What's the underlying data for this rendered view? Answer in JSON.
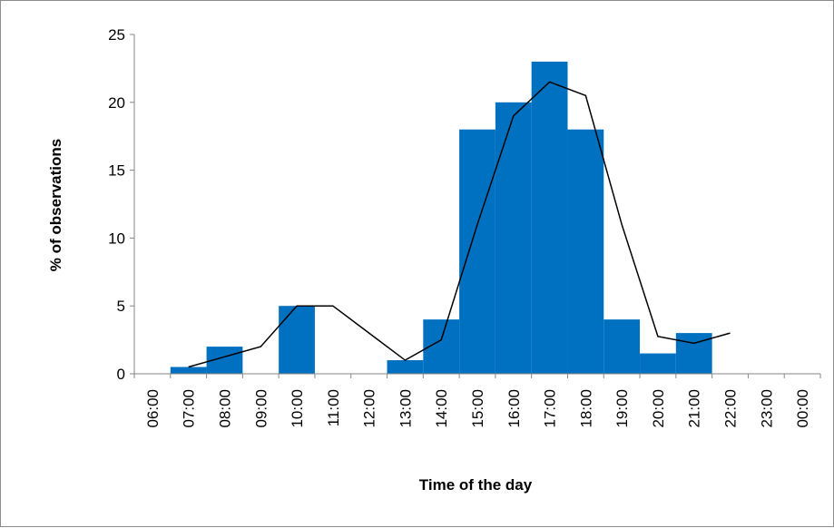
{
  "chart_data": {
    "type": "bar",
    "title": "",
    "xlabel": "Time of the day",
    "ylabel": "% of observations",
    "ylim": [
      0,
      25
    ],
    "yticks": [
      0,
      5,
      10,
      15,
      20,
      25
    ],
    "grid": false,
    "legend": "none",
    "categories": [
      "06:00",
      "07:00",
      "08:00",
      "09:00",
      "10:00",
      "11:00",
      "12:00",
      "13:00",
      "14:00",
      "15:00",
      "16:00",
      "17:00",
      "18:00",
      "19:00",
      "20:00",
      "21:00",
      "22:00",
      "23:00",
      "00:00"
    ],
    "series": [
      {
        "type": "bar",
        "color": "#0070c0",
        "values": [
          0,
          0.5,
          2,
          0,
          5,
          0,
          0,
          1,
          4,
          18,
          20,
          23,
          18,
          4,
          1.5,
          3,
          0,
          0,
          0
        ]
      },
      {
        "type": "line",
        "color": "#000000",
        "x": [
          "07:00",
          "08:00",
          "09:00",
          "10:00",
          "11:00",
          "12:00",
          "13:00",
          "14:00",
          "15:00",
          "16:00",
          "17:00",
          "18:00",
          "19:00",
          "20:00",
          "21:00",
          "22:00"
        ],
        "values": [
          0.5,
          1.25,
          2,
          5,
          5,
          3,
          1,
          2.5,
          11,
          19,
          21.5,
          20.5,
          11,
          2.75,
          2.25,
          3
        ]
      }
    ]
  }
}
